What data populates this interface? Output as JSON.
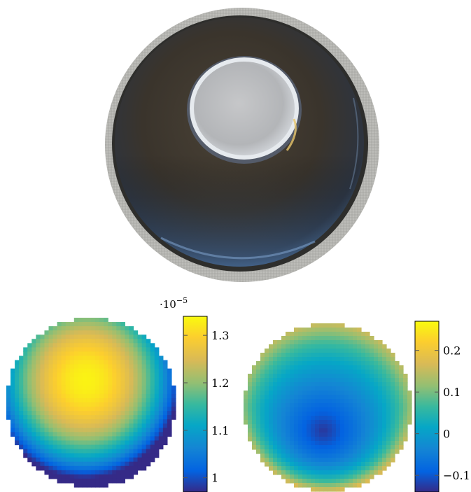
{
  "photo": {
    "subject": "petri-dish-with-sample"
  },
  "chart_data": [
    {
      "type": "heatmap",
      "shape": "circular-disc",
      "colormap": "parula",
      "colorbar": {
        "min": 0.97,
        "max": 1.34,
        "ticks": [
          1,
          1.1,
          1.2,
          1.3
        ],
        "tick_labels": [
          "1",
          "1.1",
          "1.2",
          "1.3"
        ],
        "multiplier": "·10",
        "multiplier_exponent": "−5"
      },
      "field": {
        "peak_value": 1.33,
        "peak_location": "upper-center-left",
        "min_value": 0.98,
        "min_location": "lower-right"
      }
    },
    {
      "type": "heatmap",
      "shape": "circular-disc",
      "colormap": "parula",
      "colorbar": {
        "min": -0.14,
        "max": 0.27,
        "ticks": [
          -0.1,
          0,
          0.1,
          0.2
        ],
        "tick_labels": [
          "−0.1",
          "0",
          "0.1",
          "0.2"
        ]
      },
      "field": {
        "min_value": -0.13,
        "min_location": "lower-center",
        "max_value": 0.26,
        "max_location": "bottom-rim"
      }
    }
  ]
}
